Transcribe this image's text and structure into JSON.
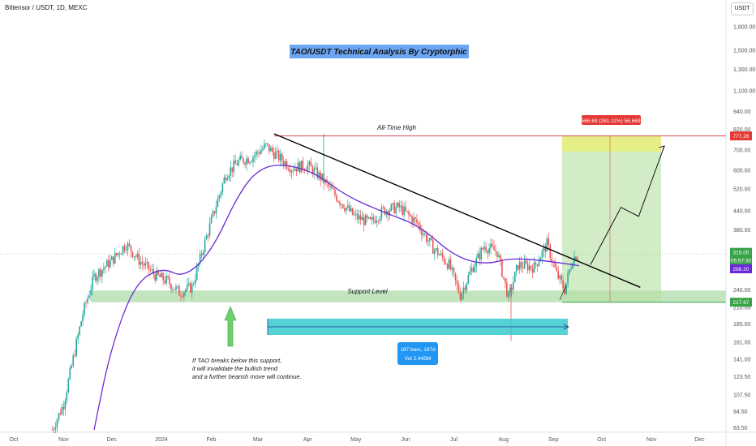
{
  "header": {
    "symbol": "Bittensor / USDT, 1D, MEXC",
    "currency": "USDT"
  },
  "chart_data": {
    "type": "candlestick",
    "title": "TAO/USDT Technical Analysis By Cryptorphic",
    "y_scale": "log",
    "ylim": [
      80,
      2100
    ],
    "y_ticks": [
      "1,800.00",
      "1,500.00",
      "1,300.00",
      "1,100.00",
      "940.00",
      "820.00",
      "700.00",
      "600.00",
      "520.00",
      "440.00",
      "380.00",
      "315.00",
      "240.00",
      "210.00",
      "185.00",
      "161.00",
      "141.00",
      "123.50",
      "107.50",
      "94.50",
      "83.50"
    ],
    "x_ticks": [
      "Oct",
      "Nov",
      "Dec",
      "2024",
      "Feb",
      "Mar",
      "Apr",
      "May",
      "Jun",
      "Jul",
      "Aug",
      "Sep",
      "Oct",
      "Nov",
      "Dec"
    ],
    "price_keypoints": [
      {
        "date": "2023-10-25",
        "price": 82
      },
      {
        "date": "2023-11-01",
        "price": 100
      },
      {
        "date": "2023-11-08",
        "price": 150
      },
      {
        "date": "2023-11-13",
        "price": 200
      },
      {
        "date": "2023-11-20",
        "price": 265
      },
      {
        "date": "2023-12-01",
        "price": 300
      },
      {
        "date": "2023-12-10",
        "price": 340
      },
      {
        "date": "2023-12-18",
        "price": 300
      },
      {
        "date": "2023-12-28",
        "price": 268
      },
      {
        "date": "2024-01-05",
        "price": 255
      },
      {
        "date": "2024-01-12",
        "price": 235
      },
      {
        "date": "2024-01-20",
        "price": 245
      },
      {
        "date": "2024-01-28",
        "price": 345
      },
      {
        "date": "2024-02-03",
        "price": 440
      },
      {
        "date": "2024-02-10",
        "price": 580
      },
      {
        "date": "2024-02-18",
        "price": 640
      },
      {
        "date": "2024-02-26",
        "price": 660
      },
      {
        "date": "2024-03-06",
        "price": 720
      },
      {
        "date": "2024-03-14",
        "price": 660
      },
      {
        "date": "2024-03-22",
        "price": 610
      },
      {
        "date": "2024-04-01",
        "price": 620
      },
      {
        "date": "2024-04-10",
        "price": 560
      },
      {
        "date": "2024-04-20",
        "price": 480
      },
      {
        "date": "2024-04-30",
        "price": 420
      },
      {
        "date": "2024-05-10",
        "price": 400
      },
      {
        "date": "2024-05-18",
        "price": 440
      },
      {
        "date": "2024-05-28",
        "price": 450
      },
      {
        "date": "2024-06-08",
        "price": 400
      },
      {
        "date": "2024-06-18",
        "price": 330
      },
      {
        "date": "2024-06-28",
        "price": 290
      },
      {
        "date": "2024-07-05",
        "price": 230
      },
      {
        "date": "2024-07-12",
        "price": 280
      },
      {
        "date": "2024-07-20",
        "price": 335
      },
      {
        "date": "2024-07-28",
        "price": 320
      },
      {
        "date": "2024-08-04",
        "price": 225
      },
      {
        "date": "2024-08-10",
        "price": 290
      },
      {
        "date": "2024-08-20",
        "price": 285
      },
      {
        "date": "2024-08-28",
        "price": 340
      },
      {
        "date": "2024-09-03",
        "price": 270
      },
      {
        "date": "2024-09-08",
        "price": 240
      },
      {
        "date": "2024-09-13",
        "price": 305
      },
      {
        "date": "2024-09-17",
        "price": 317
      }
    ],
    "moving_average": [
      {
        "date": "2023-11-20",
        "price": 82
      },
      {
        "date": "2023-11-30",
        "price": 150
      },
      {
        "date": "2023-12-15",
        "price": 250
      },
      {
        "date": "2024-01-01",
        "price": 285
      },
      {
        "date": "2024-01-15",
        "price": 262
      },
      {
        "date": "2024-02-01",
        "price": 320
      },
      {
        "date": "2024-02-18",
        "price": 500
      },
      {
        "date": "2024-03-01",
        "price": 600
      },
      {
        "date": "2024-03-15",
        "price": 630
      },
      {
        "date": "2024-04-05",
        "price": 590
      },
      {
        "date": "2024-04-25",
        "price": 490
      },
      {
        "date": "2024-05-20",
        "price": 430
      },
      {
        "date": "2024-06-10",
        "price": 390
      },
      {
        "date": "2024-07-01",
        "price": 310
      },
      {
        "date": "2024-07-20",
        "price": 290
      },
      {
        "date": "2024-08-05",
        "price": 305
      },
      {
        "date": "2024-08-25",
        "price": 300
      },
      {
        "date": "2024-09-17",
        "price": 288
      }
    ],
    "levels": {
      "all_time_high": 777.26,
      "current_price": 315.0,
      "ma_value": 288.2,
      "support_top": 238,
      "support_bottom": 217.67,
      "target_box_top": 777.26,
      "target_box_inner": 690
    },
    "badges": {
      "ath": "777.26",
      "price": "315.00",
      "countdown": "05:57:30",
      "ma": "288.20",
      "support": "217.67"
    },
    "colors": {
      "up": "#26a69a",
      "down": "#ef5350",
      "ma": "#6a2bd6",
      "support_zone": "#8fd08a",
      "target_zone": "#b5dfa3",
      "ath_line": "#e0454f",
      "title_bg": "#6ca6f2",
      "date_range": "#38c9cf"
    },
    "annotations": {
      "title": "TAO/USDT Technical Analysis By Cryptorphic",
      "ath_label": "All-Time High",
      "support_label": "Support Level",
      "note_line1": "If TAO breaks below this support,",
      "note_line2": "it will invalidate the bullish trend",
      "note_line3": "and a further bearish move will continue.",
      "measure": "566.69 (261.11%) 56,669",
      "range_line1": "187 bars, 187d",
      "range_line2": "Vol 2.445M"
    },
    "trendline": [
      {
        "date": "2024-03-04",
        "price": 790
      },
      {
        "date": "2024-10-18",
        "price": 244
      }
    ],
    "projection_path": [
      {
        "date": "2024-09-17",
        "price": 290
      },
      {
        "date": "2024-10-06",
        "price": 450
      },
      {
        "date": "2024-10-17",
        "price": 420
      },
      {
        "date": "2024-11-02",
        "price": 720
      }
    ]
  }
}
